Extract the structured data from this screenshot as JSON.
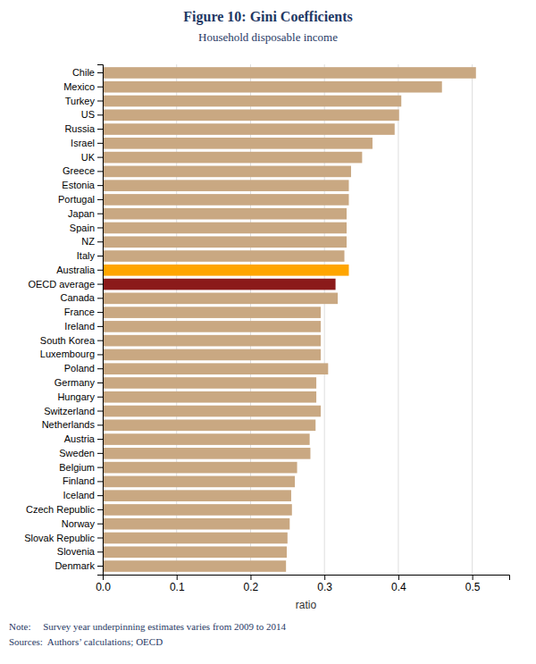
{
  "chart_data": {
    "type": "bar",
    "orientation": "horizontal",
    "title": "Figure 10: Gini Coefficients",
    "subtitle": "Household disposable income",
    "x_label": "ratio",
    "annotations": [
      "Note:     Survey year underpinning estimates varies from 2009 to 2014",
      "Sources:  Authors’ calculations; OECD"
    ],
    "categories": [
      "Denmark",
      "Slovenia",
      "Slovak Republic",
      "Norway",
      "Czech Republic",
      "Iceland",
      "Finland",
      "Belgium",
      "Sweden",
      "Austria",
      "Netherlands",
      "Switzerland",
      "Hungary",
      "Germany",
      "Poland",
      "Luxembourg",
      "South Korea",
      "Ireland",
      "France",
      "Canada",
      "OECD average",
      "Australia",
      "Italy",
      "NZ",
      "Spain",
      "Japan",
      "Portugal",
      "Estonia",
      "Greece",
      "UK",
      "Israel",
      "Russia",
      "US",
      "Turkey",
      "Mexico",
      "Chile"
    ],
    "values": [
      0.248,
      0.249,
      0.25,
      0.253,
      0.256,
      0.255,
      0.26,
      0.263,
      0.281,
      0.28,
      0.288,
      0.295,
      0.289,
      0.289,
      0.305,
      0.295,
      0.295,
      0.295,
      0.295,
      0.318,
      0.315,
      0.333,
      0.327,
      0.33,
      0.33,
      0.33,
      0.333,
      0.333,
      0.336,
      0.351,
      0.365,
      0.395,
      0.401,
      0.404,
      0.459,
      0.505
    ],
    "colors": [
      "#C9A882",
      "#C9A882",
      "#C9A882",
      "#C9A882",
      "#C9A882",
      "#C9A882",
      "#C9A882",
      "#C9A882",
      "#C9A882",
      "#C9A882",
      "#C9A882",
      "#C9A882",
      "#C9A882",
      "#C9A882",
      "#C9A882",
      "#C9A882",
      "#C9A882",
      "#C9A882",
      "#C9A882",
      "#C9A882",
      "#8B1A1A",
      "#FFA500",
      "#C9A882",
      "#C9A882",
      "#C9A882",
      "#C9A882",
      "#C9A882",
      "#C9A882",
      "#C9A882",
      "#C9A882",
      "#C9A882",
      "#C9A882",
      "#C9A882",
      "#C9A882",
      "#C9A882",
      "#C9A882"
    ],
    "xlim": [
      0,
      0.55
    ],
    "xticks": [
      {
        "value": 0.0,
        "label": "0.0"
      },
      0.1,
      0.2,
      0.3,
      0.4,
      0.5
    ],
    "grid": true
  }
}
